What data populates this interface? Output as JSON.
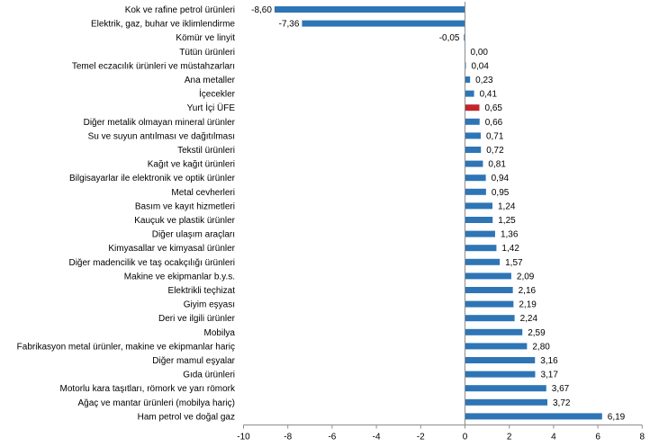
{
  "chart_data": {
    "type": "bar",
    "orientation": "horizontal",
    "title": "",
    "xlabel": "",
    "ylabel": "",
    "xlim": [
      -10,
      8
    ],
    "x_ticks": [
      "-10",
      "-8",
      "-6",
      "-4",
      "-2",
      "0",
      "2",
      "4",
      "6",
      "8"
    ],
    "tick_values": [
      -10,
      -8,
      -6,
      -4,
      -2,
      0,
      2,
      4,
      6,
      8
    ],
    "grid": false,
    "legend": "none",
    "bar_color": "#2E75B6",
    "highlight_color": "#C0272D",
    "highlight_category": "Yurt İçi ÜFE",
    "categories": [
      "Kok ve rafine petrol ürünleri",
      "Elektrik, gaz, buhar ve iklimlendirme",
      "Kömür ve linyit",
      "Tütün ürünleri",
      "Temel eczacılık ürünleri ve müstahzarları",
      "Ana metaller",
      "İçecekler",
      "Yurt İçi ÜFE",
      "Diğer metalik olmayan mineral ürünler",
      "Su ve suyun antılması ve dağıtılması",
      "Tekstil ürünleri",
      "Kağıt ve kağıt ürünleri",
      "Bilgisayarlar ile elektronik ve optik ürünler",
      "Metal cevherleri",
      "Basım ve kayıt hizmetleri",
      "Kauçuk ve plastik ürünler",
      "Diğer ulaşım araçları",
      "Kimyasallar ve kimyasal ürünler",
      "Diğer madencilik ve taş ocakçılığı ürünleri",
      "Makine ve ekipmanlar b.y.s.",
      "Elektrikli teçhizat",
      "Giyim eşyası",
      "Deri ve ilgili ürünler",
      "Mobilya",
      "Fabrikasyon metal ürünler, makine ve ekipmanlar hariç",
      "Diğer mamul eşyalar",
      "Gıda ürünleri",
      "Motorlu kara taşıtları, römork ve yarı römork",
      "Ağaç ve mantar ürünleri (mobilya hariç)",
      "Ham petrol ve doğal gaz"
    ],
    "values": [
      -8.6,
      -7.36,
      -0.05,
      0.0,
      0.04,
      0.23,
      0.41,
      0.65,
      0.66,
      0.71,
      0.72,
      0.81,
      0.94,
      0.95,
      1.24,
      1.25,
      1.36,
      1.42,
      1.57,
      2.09,
      2.16,
      2.19,
      2.24,
      2.59,
      2.8,
      3.16,
      3.17,
      3.67,
      3.72,
      6.19
    ],
    "value_labels": [
      "-8,60",
      "-7,36",
      "-0,05",
      "0,00",
      "0,04",
      "0,23",
      "0,41",
      "0,65",
      "0,66",
      "0,71",
      "0,72",
      "0,81",
      "0,94",
      "0,95",
      "1,24",
      "1,25",
      "1,36",
      "1,42",
      "1,57",
      "2,09",
      "2,16",
      "2,19",
      "2,24",
      "2,59",
      "2,80",
      "3,16",
      "3,17",
      "3,67",
      "3,72",
      "6,19"
    ]
  }
}
